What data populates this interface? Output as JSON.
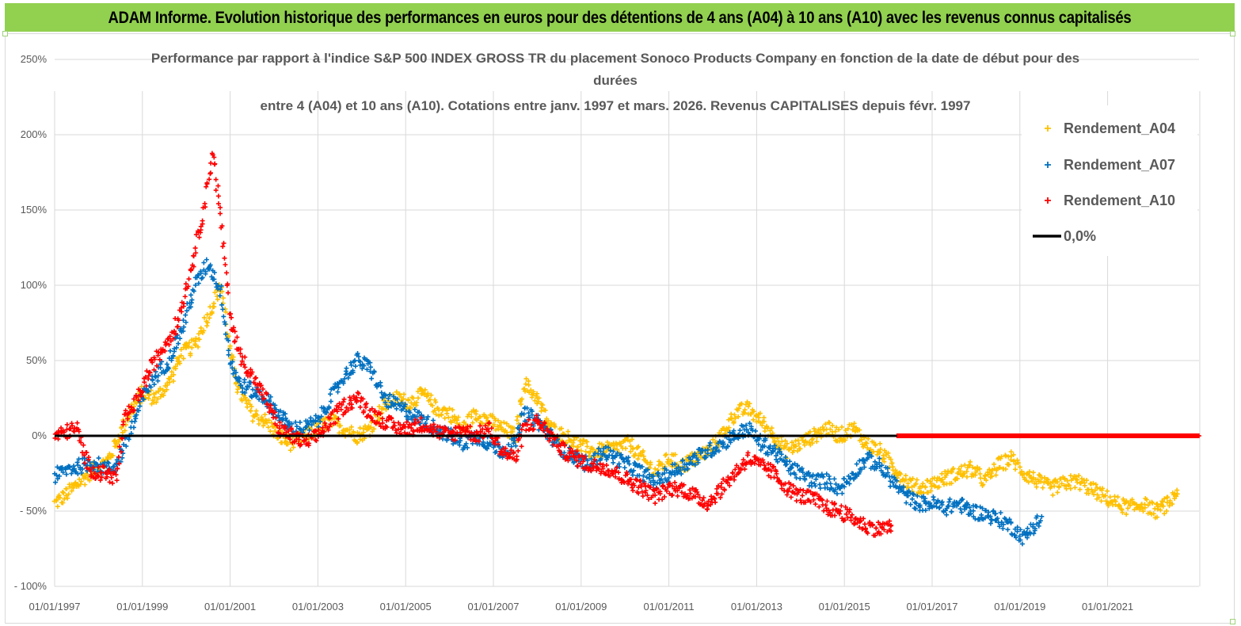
{
  "banner": {
    "title": "ADAM Informe. Evolution historique des performances en euros pour des détentions de 4 ans (A04) à 10 ans (A10) avec les revenus connus capitalisés"
  },
  "colors": {
    "banner_bg": "#92d050",
    "A04": "#ffc000",
    "A07": "#0070c0",
    "A10": "#ff0000",
    "zero_line": "#000000",
    "grid": "#d9d9d9"
  },
  "chart_data": {
    "type": "scatter",
    "title_lines": [
      "Performance par rapport à l'indice S&P 500 INDEX GROSS TR  du placement Sonoco Products Company en fonction de la date de début pour des",
      "durées",
      "entre 4 (A04) et 10 ans (A10). Cotations entre janv. 1997 et mars. 2026. Revenus CAPITALISES depuis févr. 1997"
    ],
    "y_ticks": [
      "250%",
      "200%",
      "150%",
      "100%",
      "50%",
      "0%",
      "- 50%",
      "- 100%"
    ],
    "x_ticks": [
      "01/01/1997",
      "01/01/1999",
      "01/01/2001",
      "01/01/2003",
      "01/01/2005",
      "01/01/2007",
      "01/01/2009",
      "01/01/2011",
      "01/01/2013",
      "01/01/2015",
      "01/01/2017",
      "01/01/2019",
      "01/01/2021"
    ],
    "ylim": [
      -100,
      250
    ],
    "xlim": [
      1997.0,
      2023.1
    ],
    "legend_position": "top-right",
    "series": [
      {
        "name": "Rendement_A04",
        "color": "#ffc000",
        "points": [
          [
            1997.0,
            -45
          ],
          [
            1997.3,
            -38
          ],
          [
            1997.6,
            -30
          ],
          [
            1997.9,
            -22
          ],
          [
            1998.2,
            -17
          ],
          [
            1998.4,
            -5
          ],
          [
            1998.7,
            15
          ],
          [
            1999.0,
            28
          ],
          [
            1999.3,
            25
          ],
          [
            1999.6,
            35
          ],
          [
            1999.9,
            55
          ],
          [
            2000.2,
            60
          ],
          [
            2000.5,
            80
          ],
          [
            2000.8,
            100
          ],
          [
            2001.0,
            55
          ],
          [
            2001.2,
            30
          ],
          [
            2001.5,
            15
          ],
          [
            2001.8,
            10
          ],
          [
            2002.1,
            0
          ],
          [
            2002.4,
            -5
          ],
          [
            2002.7,
            0
          ],
          [
            2003.0,
            5
          ],
          [
            2003.3,
            10
          ],
          [
            2003.6,
            5
          ],
          [
            2003.9,
            0
          ],
          [
            2004.2,
            5
          ],
          [
            2004.5,
            20
          ],
          [
            2004.8,
            25
          ],
          [
            2005.1,
            22
          ],
          [
            2005.4,
            28
          ],
          [
            2005.7,
            18
          ],
          [
            2006.0,
            15
          ],
          [
            2006.3,
            5
          ],
          [
            2006.6,
            15
          ],
          [
            2006.9,
            10
          ],
          [
            2007.2,
            5
          ],
          [
            2007.5,
            0
          ],
          [
            2007.7,
            35
          ],
          [
            2008.0,
            25
          ],
          [
            2008.3,
            5
          ],
          [
            2008.6,
            0
          ],
          [
            2008.9,
            -5
          ],
          [
            2009.2,
            -10
          ],
          [
            2009.5,
            -10
          ],
          [
            2009.8,
            -8
          ],
          [
            2010.1,
            -5
          ],
          [
            2010.4,
            -15
          ],
          [
            2010.7,
            -25
          ],
          [
            2011.0,
            -15
          ],
          [
            2011.3,
            -20
          ],
          [
            2011.6,
            -15
          ],
          [
            2011.9,
            -10
          ],
          [
            2012.2,
            0
          ],
          [
            2012.5,
            15
          ],
          [
            2012.8,
            18
          ],
          [
            2013.1,
            10
          ],
          [
            2013.4,
            0
          ],
          [
            2013.7,
            -10
          ],
          [
            2014.0,
            -5
          ],
          [
            2014.3,
            0
          ],
          [
            2014.6,
            5
          ],
          [
            2014.9,
            0
          ],
          [
            2015.2,
            5
          ],
          [
            2015.5,
            -5
          ],
          [
            2015.8,
            -10
          ],
          [
            2016.1,
            -20
          ],
          [
            2016.4,
            -30
          ],
          [
            2016.7,
            -35
          ],
          [
            2017.0,
            -32
          ],
          [
            2017.3,
            -28
          ],
          [
            2017.6,
            -25
          ],
          [
            2017.9,
            -22
          ],
          [
            2018.2,
            -30
          ],
          [
            2018.5,
            -20
          ],
          [
            2018.8,
            -15
          ],
          [
            2019.1,
            -25
          ],
          [
            2019.4,
            -30
          ],
          [
            2019.7,
            -35
          ],
          [
            2020.0,
            -32
          ],
          [
            2020.3,
            -30
          ],
          [
            2020.6,
            -35
          ],
          [
            2020.9,
            -40
          ],
          [
            2021.2,
            -45
          ],
          [
            2021.5,
            -48
          ],
          [
            2021.8,
            -45
          ],
          [
            2022.1,
            -50
          ],
          [
            2022.4,
            -45
          ],
          [
            2022.6,
            -35
          ]
        ]
      },
      {
        "name": "Rendement_A07",
        "color": "#0070c0",
        "points": [
          [
            1997.0,
            -27
          ],
          [
            1997.3,
            -22
          ],
          [
            1997.6,
            -20
          ],
          [
            1997.9,
            -18
          ],
          [
            1998.2,
            -22
          ],
          [
            1998.4,
            -20
          ],
          [
            1998.7,
            0
          ],
          [
            1999.0,
            25
          ],
          [
            1999.3,
            40
          ],
          [
            1999.6,
            50
          ],
          [
            1999.9,
            70
          ],
          [
            2000.2,
            100
          ],
          [
            2000.5,
            115
          ],
          [
            2000.8,
            95
          ],
          [
            2001.0,
            50
          ],
          [
            2001.2,
            35
          ],
          [
            2001.5,
            30
          ],
          [
            2001.8,
            25
          ],
          [
            2002.1,
            15
          ],
          [
            2002.4,
            5
          ],
          [
            2002.7,
            5
          ],
          [
            2003.0,
            10
          ],
          [
            2003.3,
            25
          ],
          [
            2003.6,
            40
          ],
          [
            2003.9,
            50
          ],
          [
            2004.2,
            45
          ],
          [
            2004.5,
            25
          ],
          [
            2004.8,
            20
          ],
          [
            2005.1,
            15
          ],
          [
            2005.4,
            10
          ],
          [
            2005.7,
            5
          ],
          [
            2006.0,
            0
          ],
          [
            2006.3,
            -5
          ],
          [
            2006.6,
            0
          ],
          [
            2006.9,
            -5
          ],
          [
            2007.2,
            -10
          ],
          [
            2007.5,
            -5
          ],
          [
            2007.7,
            15
          ],
          [
            2008.0,
            10
          ],
          [
            2008.3,
            0
          ],
          [
            2008.6,
            -10
          ],
          [
            2008.9,
            -15
          ],
          [
            2009.2,
            -20
          ],
          [
            2009.5,
            -10
          ],
          [
            2009.8,
            -15
          ],
          [
            2010.1,
            -20
          ],
          [
            2010.4,
            -25
          ],
          [
            2010.7,
            -30
          ],
          [
            2011.0,
            -25
          ],
          [
            2011.3,
            -20
          ],
          [
            2011.6,
            -15
          ],
          [
            2011.9,
            -10
          ],
          [
            2012.2,
            -5
          ],
          [
            2012.5,
            0
          ],
          [
            2012.8,
            5
          ],
          [
            2013.1,
            -5
          ],
          [
            2013.4,
            -10
          ],
          [
            2013.7,
            -20
          ],
          [
            2014.0,
            -25
          ],
          [
            2014.3,
            -30
          ],
          [
            2014.6,
            -30
          ],
          [
            2014.9,
            -35
          ],
          [
            2015.2,
            -25
          ],
          [
            2015.5,
            -15
          ],
          [
            2015.8,
            -20
          ],
          [
            2016.1,
            -30
          ],
          [
            2016.4,
            -40
          ],
          [
            2016.7,
            -45
          ],
          [
            2017.0,
            -45
          ],
          [
            2017.3,
            -48
          ],
          [
            2017.6,
            -45
          ],
          [
            2017.9,
            -50
          ],
          [
            2018.2,
            -52
          ],
          [
            2018.5,
            -55
          ],
          [
            2018.8,
            -60
          ],
          [
            2019.1,
            -68
          ],
          [
            2019.3,
            -60
          ],
          [
            2019.5,
            -55
          ]
        ]
      },
      {
        "name": "Rendement_A10",
        "color": "#ff0000",
        "points": [
          [
            1997.0,
            0
          ],
          [
            1997.3,
            3
          ],
          [
            1997.5,
            5
          ],
          [
            1997.7,
            -15
          ],
          [
            1997.9,
            -25
          ],
          [
            1998.2,
            -25
          ],
          [
            1998.4,
            -28
          ],
          [
            1998.6,
            10
          ],
          [
            1998.9,
            25
          ],
          [
            1999.2,
            45
          ],
          [
            1999.5,
            60
          ],
          [
            1999.8,
            75
          ],
          [
            2000.1,
            110
          ],
          [
            2000.4,
            150
          ],
          [
            2000.6,
            190
          ],
          [
            2000.8,
            140
          ],
          [
            2001.0,
            80
          ],
          [
            2001.2,
            55
          ],
          [
            2001.5,
            40
          ],
          [
            2001.8,
            25
          ],
          [
            2002.1,
            5
          ],
          [
            2002.4,
            0
          ],
          [
            2002.7,
            -5
          ],
          [
            2003.0,
            0
          ],
          [
            2003.3,
            10
          ],
          [
            2003.6,
            20
          ],
          [
            2003.9,
            25
          ],
          [
            2004.2,
            15
          ],
          [
            2004.5,
            10
          ],
          [
            2004.8,
            5
          ],
          [
            2005.1,
            5
          ],
          [
            2005.4,
            8
          ],
          [
            2005.7,
            3
          ],
          [
            2006.0,
            0
          ],
          [
            2006.3,
            5
          ],
          [
            2006.6,
            0
          ],
          [
            2006.9,
            5
          ],
          [
            2007.2,
            -10
          ],
          [
            2007.5,
            -15
          ],
          [
            2007.7,
            5
          ],
          [
            2008.0,
            10
          ],
          [
            2008.3,
            0
          ],
          [
            2008.6,
            -10
          ],
          [
            2008.9,
            -15
          ],
          [
            2009.2,
            -20
          ],
          [
            2009.5,
            -20
          ],
          [
            2009.8,
            -25
          ],
          [
            2010.1,
            -30
          ],
          [
            2010.4,
            -35
          ],
          [
            2010.7,
            -40
          ],
          [
            2011.0,
            -35
          ],
          [
            2011.3,
            -35
          ],
          [
            2011.6,
            -40
          ],
          [
            2011.9,
            -45
          ],
          [
            2012.2,
            -35
          ],
          [
            2012.5,
            -25
          ],
          [
            2012.8,
            -15
          ],
          [
            2013.1,
            -20
          ],
          [
            2013.4,
            -25
          ],
          [
            2013.7,
            -35
          ],
          [
            2014.0,
            -40
          ],
          [
            2014.3,
            -42
          ],
          [
            2014.6,
            -48
          ],
          [
            2014.9,
            -50
          ],
          [
            2015.2,
            -55
          ],
          [
            2015.5,
            -60
          ],
          [
            2015.8,
            -62
          ],
          [
            2016.1,
            -60
          ]
        ]
      },
      {
        "name": "",
        "color": "#ff0000",
        "points": [
          [
            2016.2,
            0
          ],
          [
            2023.1,
            0
          ]
        ]
      }
    ],
    "zero_line_label": "0,0%"
  }
}
